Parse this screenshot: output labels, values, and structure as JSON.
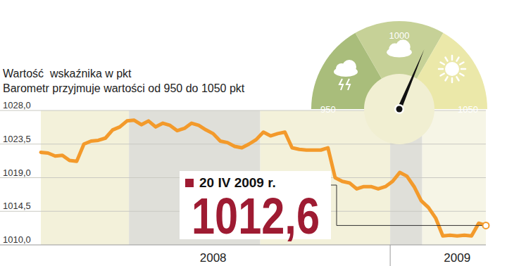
{
  "chart_data": {
    "type": "line",
    "title": "Wartość  wskaźnika w pkt",
    "subtitle": "Barometr przyjmuje wartości od 950 do 1050 pkt",
    "categories": [
      null,
      null,
      null,
      null,
      null,
      null,
      null,
      null,
      null,
      null,
      null,
      null,
      null,
      null,
      null,
      null,
      null,
      null,
      null,
      null,
      null,
      null,
      null,
      null,
      "2008",
      null,
      null,
      null,
      null,
      null,
      null,
      null,
      null,
      null,
      null,
      null,
      null,
      null,
      null,
      null,
      null,
      null,
      null,
      null,
      null,
      null,
      null,
      null,
      null,
      null,
      null,
      null,
      null,
      null,
      null,
      null,
      null,
      null,
      "2009",
      null,
      null,
      null,
      null
    ],
    "values": [
      1022.4,
      1022.3,
      1021.9,
      1022.0,
      1021.3,
      1021.2,
      1023.5,
      1023.9,
      1024.0,
      1024.3,
      1025.4,
      1025.8,
      1026.6,
      1026.7,
      1026.1,
      1026.6,
      1025.8,
      1026.3,
      1026.0,
      1025.3,
      1025.6,
      1026.3,
      1026.0,
      1025.4,
      1024.9,
      1023.9,
      1023.7,
      1023.2,
      1023.0,
      1023.5,
      1024.1,
      1025.1,
      1024.6,
      1024.9,
      1025.1,
      1023.0,
      1022.8,
      1022.7,
      1022.7,
      1022.7,
      1023.0,
      1019.0,
      1018.5,
      1018.3,
      1017.5,
      1017.8,
      1017.8,
      1017.5,
      1017.8,
      1018.5,
      1019.7,
      1019.2,
      1017.8,
      1015.9,
      1015.0,
      1013.6,
      1011.2,
      1011.3,
      1011.2,
      1011.3,
      1011.2,
      1012.9,
      1012.6
    ],
    "color": "#f39a2b",
    "ylim": [
      1010,
      1028
    ],
    "yticks": [
      {
        "value": 1010,
        "label": "1010,0"
      },
      {
        "value": 1014.5,
        "label": "1014,5"
      },
      {
        "value": 1019,
        "label": "1019,0"
      },
      {
        "value": 1023.5,
        "label": "1023,5"
      },
      {
        "value": 1028,
        "label": "1028,0"
      }
    ],
    "grid": true,
    "annotation": {
      "text": "20 IV 2009 r.",
      "label": "1012,6"
    },
    "gauge": {
      "min": 950,
      "max": 1050,
      "ticks": [
        950,
        1000,
        1050
      ]
    }
  }
}
